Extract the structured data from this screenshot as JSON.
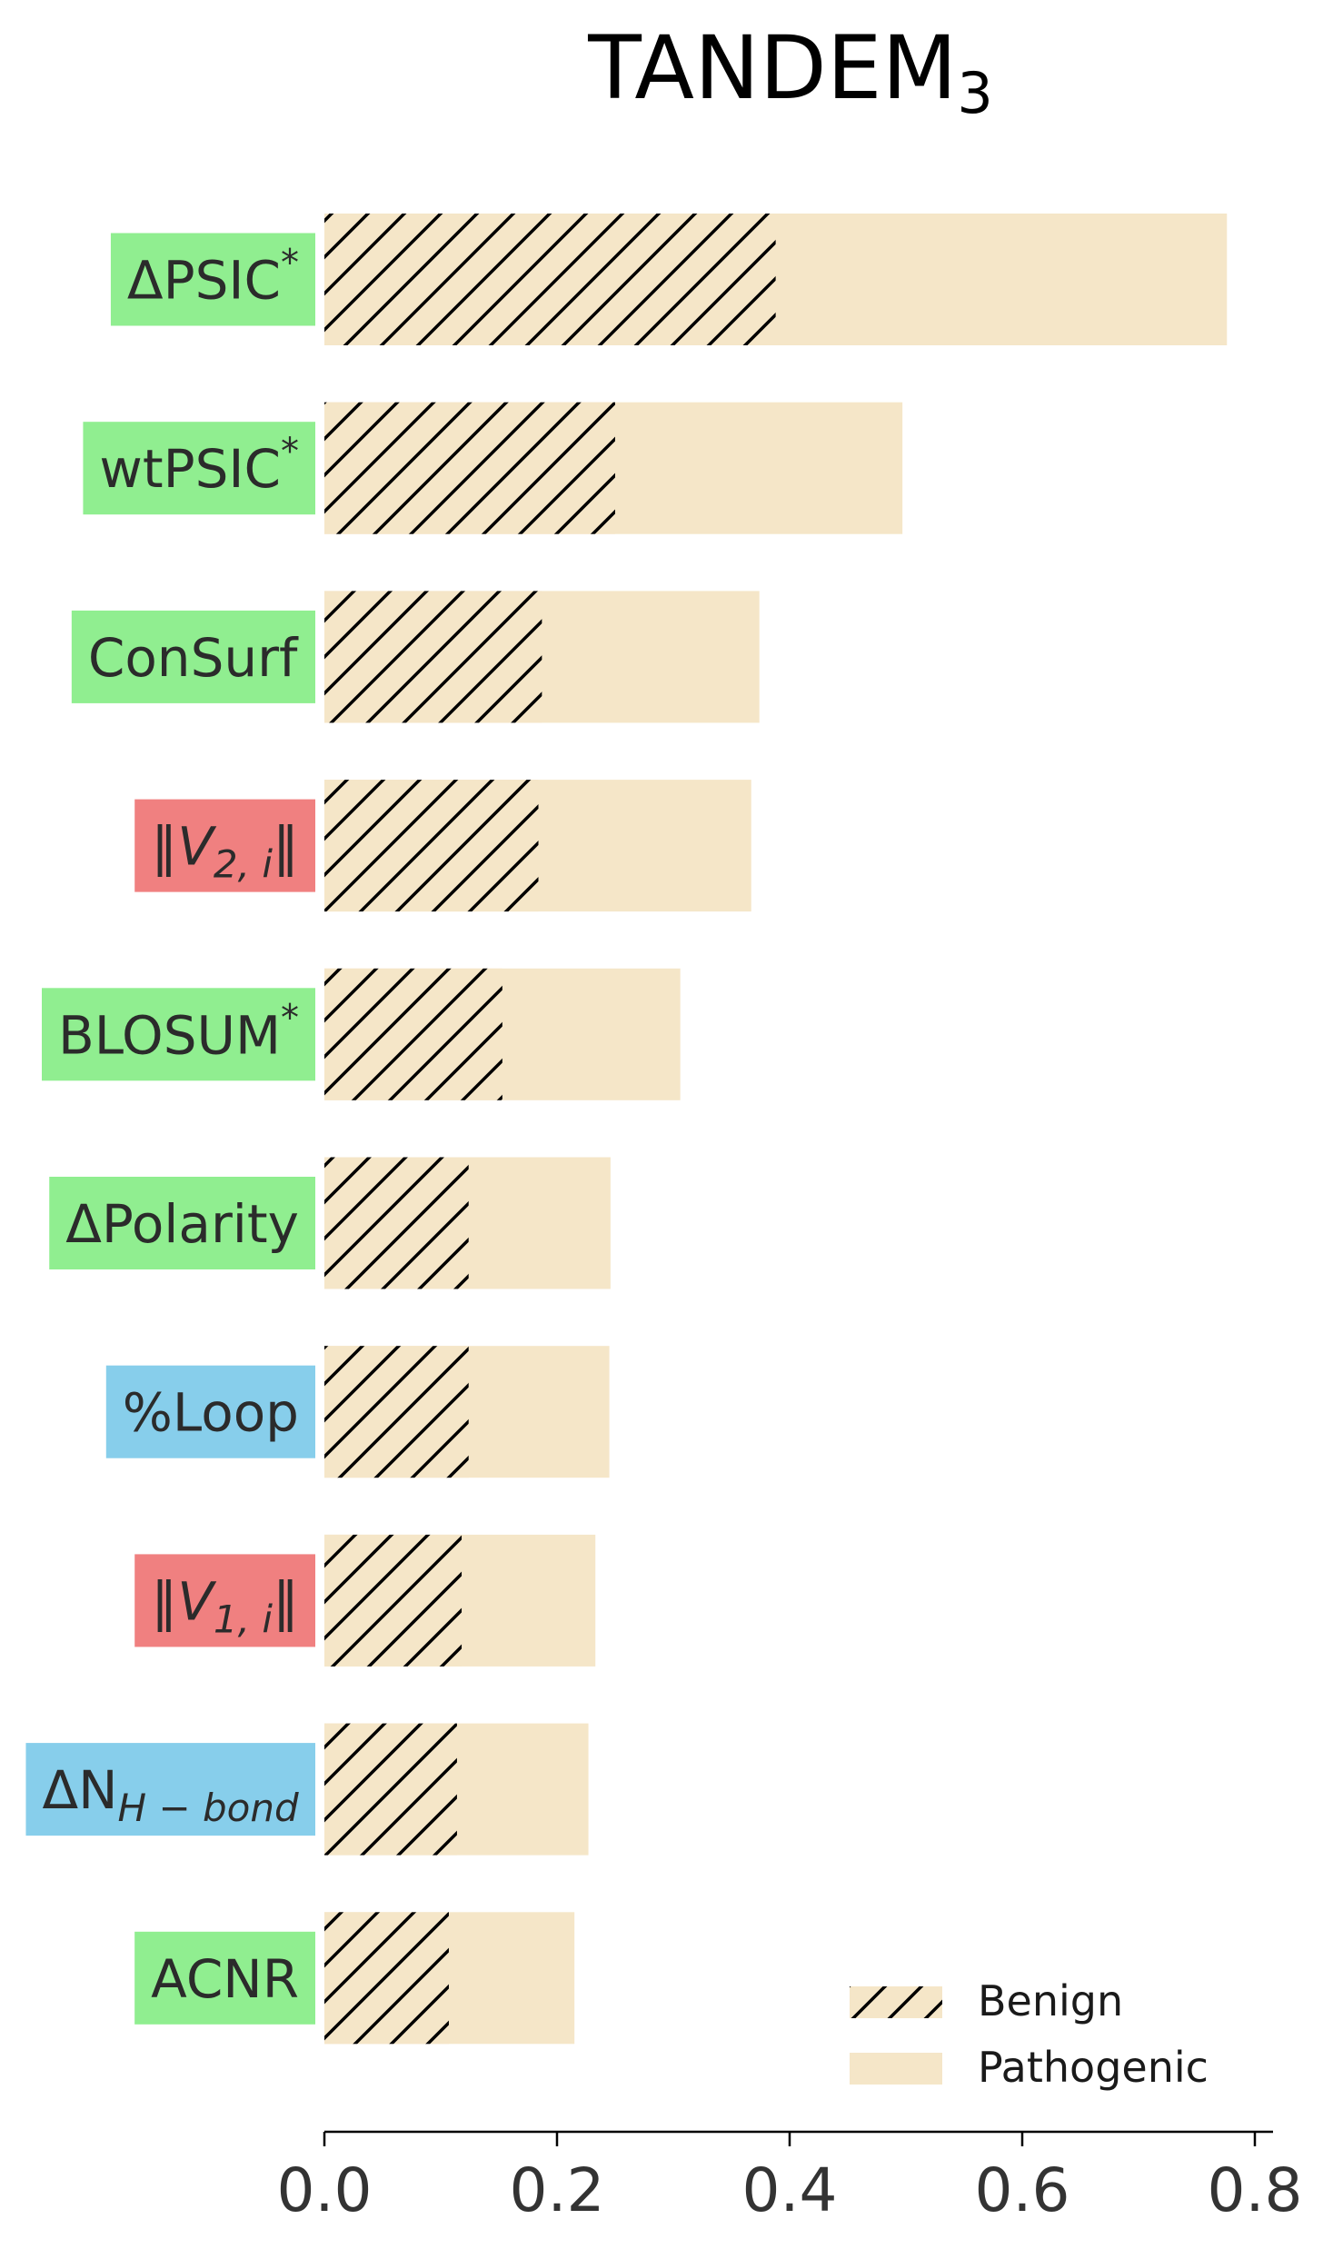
{
  "chart_data": {
    "type": "bar",
    "orientation": "horizontal",
    "title": "TANDEM",
    "title_subscript": "3",
    "categories": [
      {
        "label": "ΔPSIC",
        "sup": "*",
        "sub": "",
        "category_color": "#90EE90"
      },
      {
        "label": "wtPSIC",
        "sup": "*",
        "sub": "",
        "category_color": "#90EE90"
      },
      {
        "label": "ConSurf",
        "sup": "",
        "sub": "",
        "category_color": "#90EE90"
      },
      {
        "label": "‖V",
        "sup": "",
        "sub": "2, i",
        "tail": "‖",
        "italic": true,
        "category_color": "#F08080"
      },
      {
        "label": "BLOSUM",
        "sup": "*",
        "sub": "",
        "category_color": "#90EE90"
      },
      {
        "label": "ΔPolarity",
        "sup": "",
        "sub": "",
        "category_color": "#90EE90"
      },
      {
        "label": "%Loop",
        "sup": "",
        "sub": "",
        "category_color": "#87CEEB"
      },
      {
        "label": "‖V",
        "sup": "",
        "sub": "1, i",
        "tail": "‖",
        "italic": true,
        "category_color": "#F08080"
      },
      {
        "label": "ΔN",
        "sup": "",
        "sub": "H − bond",
        "category_color": "#87CEEB"
      },
      {
        "label": "ACNR",
        "sup": "",
        "sub": "",
        "category_color": "#90EE90"
      }
    ],
    "series": [
      {
        "name": "Benign",
        "hatch": "/",
        "color": "#F5E6C8",
        "values": [
          0.388,
          0.25,
          0.187,
          0.184,
          0.153,
          0.124,
          0.124,
          0.118,
          0.114,
          0.107
        ]
      },
      {
        "name": "Pathogenic",
        "hatch": "",
        "color": "#F5E6C8",
        "values": [
          0.776,
          0.497,
          0.374,
          0.367,
          0.306,
          0.246,
          0.245,
          0.233,
          0.227,
          0.215
        ]
      }
    ],
    "x_ticks": [
      "0.0",
      "0.2",
      "0.4",
      "0.6",
      "0.8"
    ],
    "x_tick_values": [
      0.0,
      0.2,
      0.4,
      0.6,
      0.8
    ],
    "xlim": [
      0,
      0.816
    ],
    "grid": false,
    "legend_position": "bottom-right"
  }
}
